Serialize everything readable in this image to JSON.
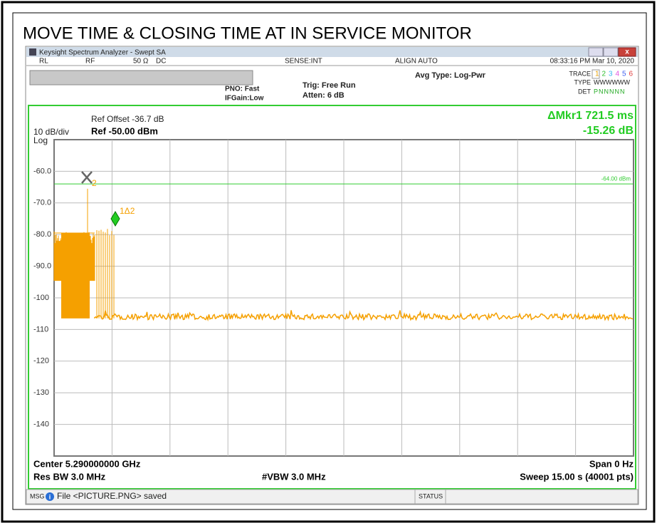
{
  "page_title": "MOVE TIME & CLOSING TIME AT IN SERVICE MONITOR",
  "window": {
    "title": "Keysight Spectrum Analyzer - Swept SA",
    "status_row": {
      "rl": "RL",
      "rf": "RF",
      "impedance": "50 Ω",
      "coupling": "DC",
      "sense": "SENSE:INT",
      "align": "ALIGN AUTO",
      "datetime": "08:33:16 PM Mar 10, 2020"
    },
    "settings": {
      "pno": "PNO: Fast",
      "ifgain": "IFGain:Low",
      "trig": "Trig: Free Run",
      "atten": "Atten: 6 dB",
      "avg": "Avg Type: Log-Pwr",
      "trace_label": "TRACE",
      "trace_nums": [
        "1",
        "2",
        "3",
        "4",
        "5",
        "6"
      ],
      "type_label": "TYPE",
      "type_values": "WWWWWW",
      "det_label": "DET",
      "det_values": "PNNNNN"
    }
  },
  "display": {
    "ref_offset": "Ref Offset -36.7 dB",
    "ref_level": "Ref -50.00 dBm",
    "scale": "10 dB/div",
    "scale_type": "Log",
    "marker_readout": "ΔMkr1 721.5 ms",
    "marker_value": "-15.26 dB",
    "y_labels": [
      "-60.0",
      "-70.0",
      "-80.0",
      "-90.0",
      "-100",
      "-110",
      "-120",
      "-130",
      "-140"
    ],
    "display_line_label": "-64.00 dBm",
    "marker2_label": "2",
    "marker1_label": "1Δ2",
    "center": "Center 5.290000000 GHz",
    "span": "Span 0 Hz",
    "rbw": "Res BW 3.0 MHz",
    "vbw": "#VBW 3.0 MHz",
    "sweep": "Sweep  15.00 s (40001 pts)"
  },
  "statusbar": {
    "msg": "MSG",
    "message": "File <PICTURE.PNG> saved",
    "status": "STATUS"
  }
}
